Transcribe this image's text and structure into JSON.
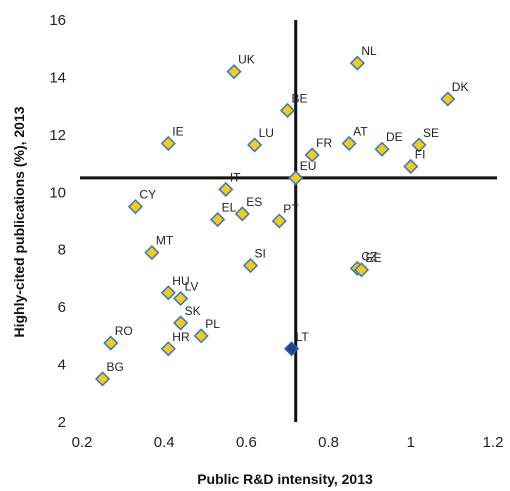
{
  "chart_data": {
    "type": "scatter",
    "title": "",
    "xlabel": "Public R&D intensity, 2013",
    "ylabel": "Highly-cited publications (%), 2013",
    "xlim": [
      0.2,
      1.2
    ],
    "ylim": [
      2,
      16
    ],
    "xticks": [
      "0.2",
      "0.4",
      "0.6",
      "0.8",
      "1",
      "1.2"
    ],
    "yticks": [
      "2",
      "4",
      "6",
      "8",
      "10",
      "12",
      "14",
      "16"
    ],
    "grid": false,
    "reference_lines": {
      "x": 0.72,
      "y": 10.5
    },
    "colors": {
      "default_fill": "#F2CB20",
      "default_stroke": "#3A78B5",
      "highlight_fill": "#1F3F8F",
      "highlight_stroke": "#2E5FA8",
      "reference_line": "#111111"
    },
    "points": [
      {
        "label": "UK",
        "x": 0.57,
        "y": 14.2
      },
      {
        "label": "NL",
        "x": 0.87,
        "y": 14.5
      },
      {
        "label": "DK",
        "x": 1.09,
        "y": 13.25
      },
      {
        "label": "BE",
        "x": 0.7,
        "y": 12.85
      },
      {
        "label": "IE",
        "x": 0.41,
        "y": 11.7
      },
      {
        "label": "LU",
        "x": 0.62,
        "y": 11.65
      },
      {
        "label": "FR",
        "x": 0.76,
        "y": 11.3
      },
      {
        "label": "AT",
        "x": 0.85,
        "y": 11.7
      },
      {
        "label": "DE",
        "x": 0.93,
        "y": 11.5
      },
      {
        "label": "SE",
        "x": 1.02,
        "y": 11.65
      },
      {
        "label": "FI",
        "x": 1.0,
        "y": 10.9
      },
      {
        "label": "EU",
        "x": 0.72,
        "y": 10.5
      },
      {
        "label": "IT",
        "x": 0.55,
        "y": 10.1
      },
      {
        "label": "CY",
        "x": 0.33,
        "y": 9.5
      },
      {
        "label": "EL",
        "x": 0.53,
        "y": 9.05
      },
      {
        "label": "ES",
        "x": 0.59,
        "y": 9.25
      },
      {
        "label": "PT",
        "x": 0.68,
        "y": 9.0
      },
      {
        "label": "MT",
        "x": 0.37,
        "y": 7.9
      },
      {
        "label": "SI",
        "x": 0.61,
        "y": 7.45
      },
      {
        "label": "CZ",
        "x": 0.87,
        "y": 7.35
      },
      {
        "label": "EE",
        "x": 0.88,
        "y": 7.3
      },
      {
        "label": "HU",
        "x": 0.41,
        "y": 6.5
      },
      {
        "label": "LV",
        "x": 0.44,
        "y": 6.3
      },
      {
        "label": "SK",
        "x": 0.44,
        "y": 5.45
      },
      {
        "label": "PL",
        "x": 0.49,
        "y": 5.0
      },
      {
        "label": "HR",
        "x": 0.41,
        "y": 4.55
      },
      {
        "label": "RO",
        "x": 0.27,
        "y": 4.75
      },
      {
        "label": "LT",
        "x": 0.71,
        "y": 4.55,
        "highlight": true
      },
      {
        "label": "BG",
        "x": 0.25,
        "y": 3.5
      }
    ]
  }
}
